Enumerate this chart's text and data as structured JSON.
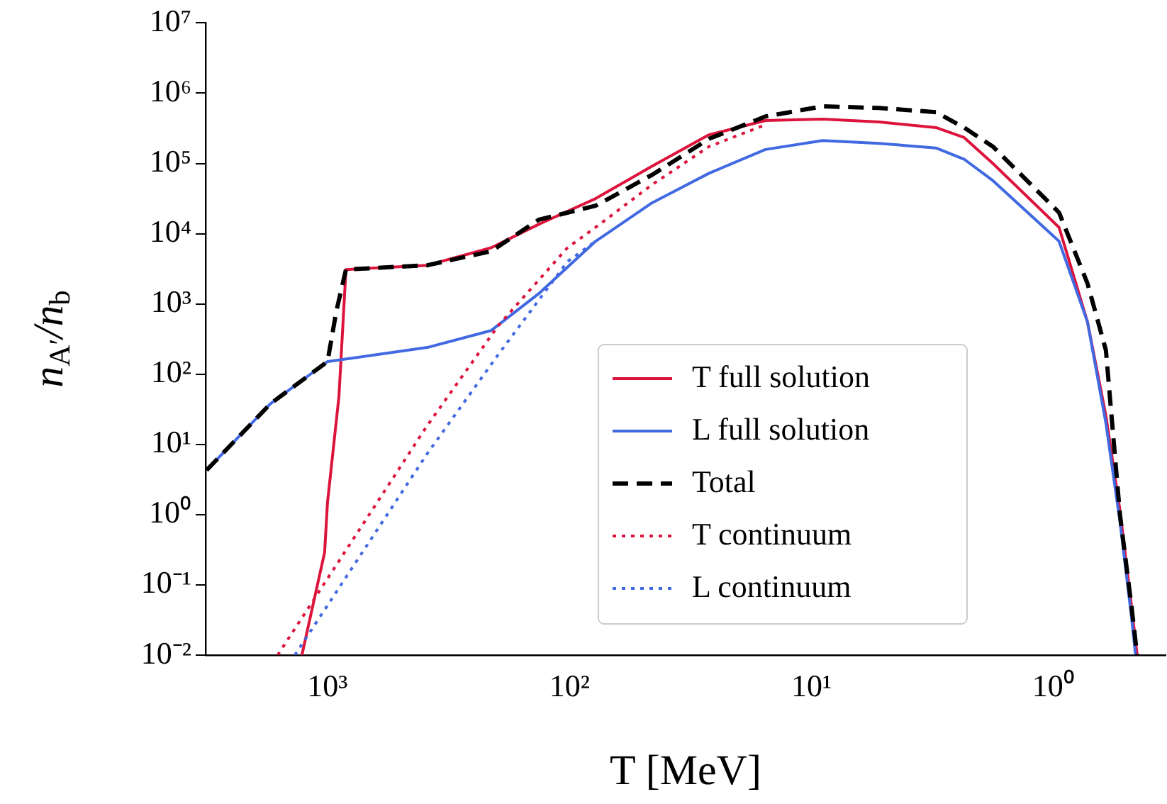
{
  "chart_data": {
    "type": "line",
    "xlabel": "T [MeV]",
    "ylabel": "n$_{A′}$/n$_{b}$",
    "log": "xy",
    "grid": false,
    "legend": "bottom right",
    "marker": "none",
    "xlim": [
      3190,
      0.344
    ],
    "xticks": [
      {
        "value": 1000,
        "label": "10³"
      },
      {
        "value": 100,
        "label": "10²"
      },
      {
        "value": 10,
        "label": "10¹"
      },
      {
        "value": 1,
        "label": "10⁰"
      }
    ],
    "ylim": [
      0.01,
      10000000
    ],
    "yticks": [
      {
        "value": 0.01,
        "label": "10⁻²"
      },
      {
        "value": 0.1,
        "label": "10⁻¹"
      },
      {
        "value": 1,
        "label": "10⁰"
      },
      {
        "value": 10,
        "label": "10¹"
      },
      {
        "value": 100,
        "label": "10²"
      },
      {
        "value": 1000,
        "label": "10³"
      },
      {
        "value": 10000,
        "label": "10⁴"
      },
      {
        "value": 100000,
        "label": "10⁵"
      },
      {
        "value": 1000000,
        "label": "10⁶"
      },
      {
        "value": 10000000,
        "label": "10⁷"
      }
    ],
    "series": [
      {
        "name": "T full solution",
        "color": "#dc143c",
        "line_style": "solid",
        "x": [
          1276,
          1028,
          1000,
          897,
          839,
          387,
          211,
          134,
          78,
          45.5,
          26.5,
          15.5,
          9.0,
          5.25,
          3.06,
          2.34,
          1.78,
          0.948,
          0.723,
          0.607,
          0.531,
          0.476,
          0.451
        ],
        "values": [
          0.01,
          0.29,
          1.5,
          48,
          3090,
          3550,
          6300,
          13600,
          31600,
          91700,
          256000,
          408000,
          427000,
          389000,
          324000,
          234000,
          100000,
          12300,
          550,
          25.7,
          1.15,
          0.051,
          0.01
        ]
      },
      {
        "name": "L full solution",
        "color": "#4169e1",
        "line_style": "solid",
        "x": [
          3160,
          1720,
          1000,
          387,
          211,
          134,
          78,
          45.5,
          26.5,
          15.5,
          9.0,
          5.25,
          3.06,
          2.34,
          1.78,
          0.948,
          0.723,
          0.607,
          0.531,
          0.476,
          0.458
        ],
        "values": [
          4.3,
          38,
          151,
          240,
          417,
          1400,
          7800,
          27600,
          72500,
          158000,
          212000,
          193000,
          166000,
          115000,
          57000,
          7800,
          550,
          20,
          0.8,
          0.035,
          0.01
        ]
      },
      {
        "name": "Total",
        "color": "#000000",
        "line_style": "dashed",
        "x": [
          3160,
          1720,
          1000,
          920,
          839,
          387,
          211,
          134,
          78,
          45.5,
          26.5,
          15.5,
          9.0,
          5.25,
          3.06,
          2.34,
          1.78,
          0.948,
          0.723,
          0.607,
          0.531,
          0.476,
          0.451
        ],
        "values": [
          4.3,
          38,
          151,
          780,
          3090,
          3550,
          5620,
          15800,
          25000,
          69000,
          224000,
          466000,
          650000,
          617000,
          537000,
          324000,
          174000,
          20000,
          1950,
          219,
          1.0,
          0.05,
          0.01
        ]
      },
      {
        "name": "T continuum",
        "color": "#dc143c",
        "line_style": "dotted",
        "x": [
          1607,
          387,
          197,
          102,
          78,
          45.5,
          26.5,
          15.5
        ],
        "values": [
          0.01,
          18.6,
          490,
          6300,
          12300,
          50000,
          174000,
          355000
        ]
      },
      {
        "name": "L continuum",
        "color": "#4169e1",
        "line_style": "dotted",
        "x": [
          1365,
          387,
          197,
          102,
          78
        ],
        "values": [
          0.01,
          7.4,
          190,
          4000,
          7800
        ]
      }
    ]
  }
}
